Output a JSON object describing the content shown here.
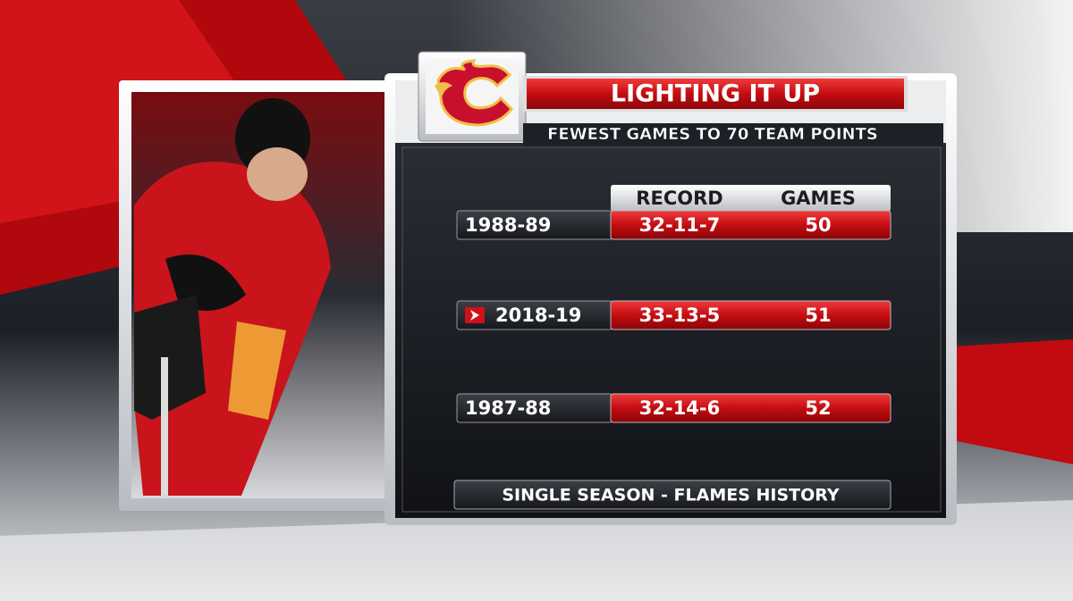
{
  "header": {
    "title": "LIGHTING IT UP",
    "subtitle": "FEWEST GAMES TO 70 TEAM POINTS"
  },
  "table": {
    "columns": [
      "RECORD",
      "GAMES"
    ],
    "rows": [
      {
        "season": "1988-89",
        "record": "32-11-7",
        "games": "50"
      },
      {
        "season": "2018-19",
        "record": "33-13-5",
        "games": "51",
        "marker": true
      },
      {
        "season": "1987-88",
        "record": "32-14-6",
        "games": "52"
      }
    ]
  },
  "footer": "SINGLE SEASON - FLAMES HISTORY"
}
